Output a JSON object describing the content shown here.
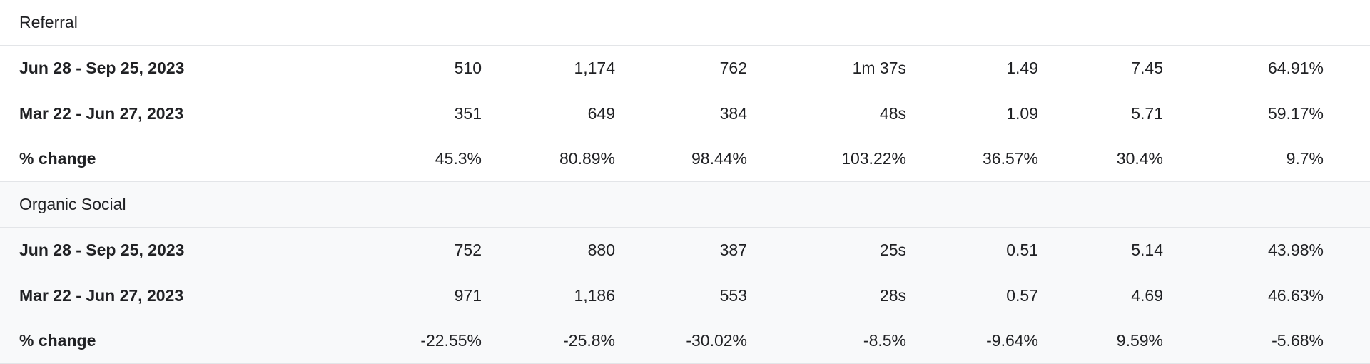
{
  "groups": [
    {
      "name": "Referral",
      "rows": [
        {
          "label": "Jun 28 - Sep 25, 2023",
          "values": [
            "510",
            "1,174",
            "762",
            "1m 37s",
            "1.49",
            "7.45",
            "64.91%"
          ]
        },
        {
          "label": "Mar 22 - Jun 27, 2023",
          "values": [
            "351",
            "649",
            "384",
            "48s",
            "1.09",
            "5.71",
            "59.17%"
          ]
        },
        {
          "label": "% change",
          "values": [
            "45.3%",
            "80.89%",
            "98.44%",
            "103.22%",
            "36.57%",
            "30.4%",
            "9.7%"
          ]
        }
      ]
    },
    {
      "name": "Organic Social",
      "rows": [
        {
          "label": "Jun 28 - Sep 25, 2023",
          "values": [
            "752",
            "880",
            "387",
            "25s",
            "0.51",
            "5.14",
            "43.98%"
          ]
        },
        {
          "label": "Mar 22 - Jun 27, 2023",
          "values": [
            "971",
            "1,186",
            "553",
            "28s",
            "0.57",
            "4.69",
            "46.63%"
          ]
        },
        {
          "label": "% change",
          "values": [
            "-22.55%",
            "-25.8%",
            "-30.02%",
            "-8.5%",
            "-9.64%",
            "9.59%",
            "-5.68%"
          ]
        }
      ]
    }
  ]
}
